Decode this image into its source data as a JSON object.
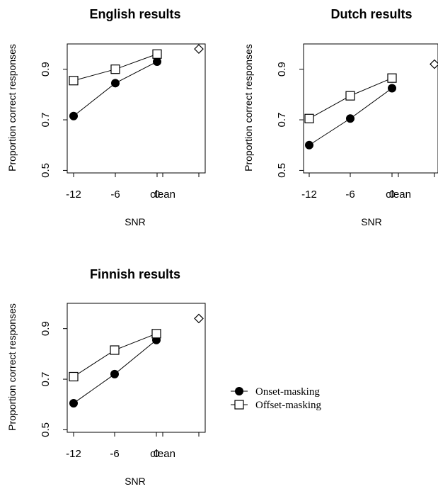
{
  "chart_data": [
    {
      "type": "line",
      "title": "English results",
      "xlabel": "SNR",
      "ylabel": "Proportion correct responses",
      "x_tick_labels": [
        "-12",
        "-6",
        "0",
        "clean"
      ],
      "y_ticks": [
        0.5,
        0.7,
        0.9
      ],
      "ylim": [
        0.49,
        1.0
      ],
      "series": [
        {
          "name": "Onset-masking",
          "marker": "filled-circle",
          "x": [
            "-12",
            "-6",
            "0"
          ],
          "values": [
            0.715,
            0.845,
            0.93
          ]
        },
        {
          "name": "Offset-masking",
          "marker": "open-square",
          "x": [
            "-12",
            "-6",
            "0"
          ],
          "values": [
            0.855,
            0.9,
            0.96
          ]
        }
      ],
      "clean": {
        "marker": "open-diamond",
        "value": 0.98
      }
    },
    {
      "type": "line",
      "title": "Dutch results",
      "xlabel": "SNR",
      "ylabel": "Proportion correct responses",
      "x_tick_labels": [
        "-12",
        "-6",
        "0",
        "clean"
      ],
      "y_ticks": [
        0.5,
        0.7,
        0.9
      ],
      "ylim": [
        0.49,
        1.0
      ],
      "series": [
        {
          "name": "Onset-masking",
          "marker": "filled-circle",
          "x": [
            "-12",
            "-6",
            "0"
          ],
          "values": [
            0.6,
            0.705,
            0.825
          ]
        },
        {
          "name": "Offset-masking",
          "marker": "open-square",
          "x": [
            "-12",
            "-6",
            "0"
          ],
          "values": [
            0.705,
            0.795,
            0.865
          ]
        }
      ],
      "clean": {
        "marker": "open-diamond",
        "value": 0.92
      }
    },
    {
      "type": "line",
      "title": "Finnish results",
      "xlabel": "SNR",
      "ylabel": "Proportion correct responses",
      "x_tick_labels": [
        "-12",
        "-6",
        "0",
        "clean"
      ],
      "y_ticks": [
        0.5,
        0.7,
        0.9
      ],
      "ylim": [
        0.49,
        1.0
      ],
      "series": [
        {
          "name": "Onset-masking",
          "marker": "filled-circle",
          "x": [
            "-12",
            "-6",
            "0"
          ],
          "values": [
            0.605,
            0.72,
            0.855
          ]
        },
        {
          "name": "Offset-masking",
          "marker": "open-square",
          "x": [
            "-12",
            "-6",
            "0"
          ],
          "values": [
            0.71,
            0.815,
            0.88
          ]
        }
      ],
      "clean": {
        "marker": "open-diamond",
        "value": 0.94
      }
    }
  ],
  "legend": {
    "placement": "bottom-right",
    "entries": [
      {
        "label": "Onset-masking",
        "marker": "filled-circle"
      },
      {
        "label": "Offset-masking",
        "marker": "open-square"
      }
    ]
  },
  "colors": {
    "ink": "#000000",
    "background": "#ffffff"
  }
}
